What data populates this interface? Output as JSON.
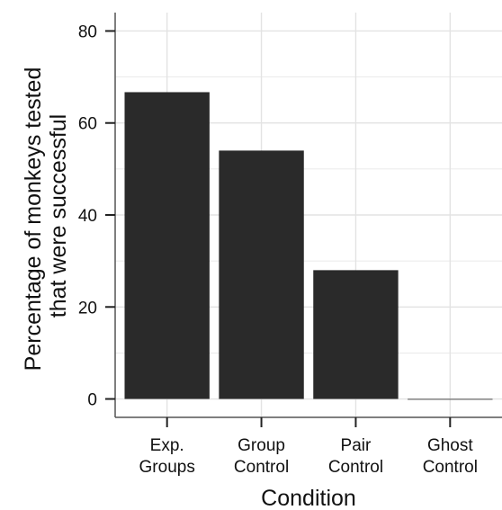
{
  "chart_data": {
    "type": "bar",
    "categories": [
      [
        "Exp.",
        "Groups"
      ],
      [
        "Group",
        "Control"
      ],
      [
        "Pair",
        "Control"
      ],
      [
        "Ghost",
        "Control"
      ]
    ],
    "values": [
      66.7,
      54,
      28,
      0
    ],
    "xlabel": "Condition",
    "ylabel_lines": [
      "Percentage of monkeys tested",
      "that were successful"
    ],
    "yticks": [
      0,
      20,
      40,
      60,
      80
    ],
    "ylim": [
      -4,
      84
    ],
    "grid": true,
    "legend": "none",
    "colors": {
      "bar": "#2a2a2a",
      "grid": "#e3e3e3",
      "axis": "#555555",
      "background": "#ffffff"
    }
  }
}
